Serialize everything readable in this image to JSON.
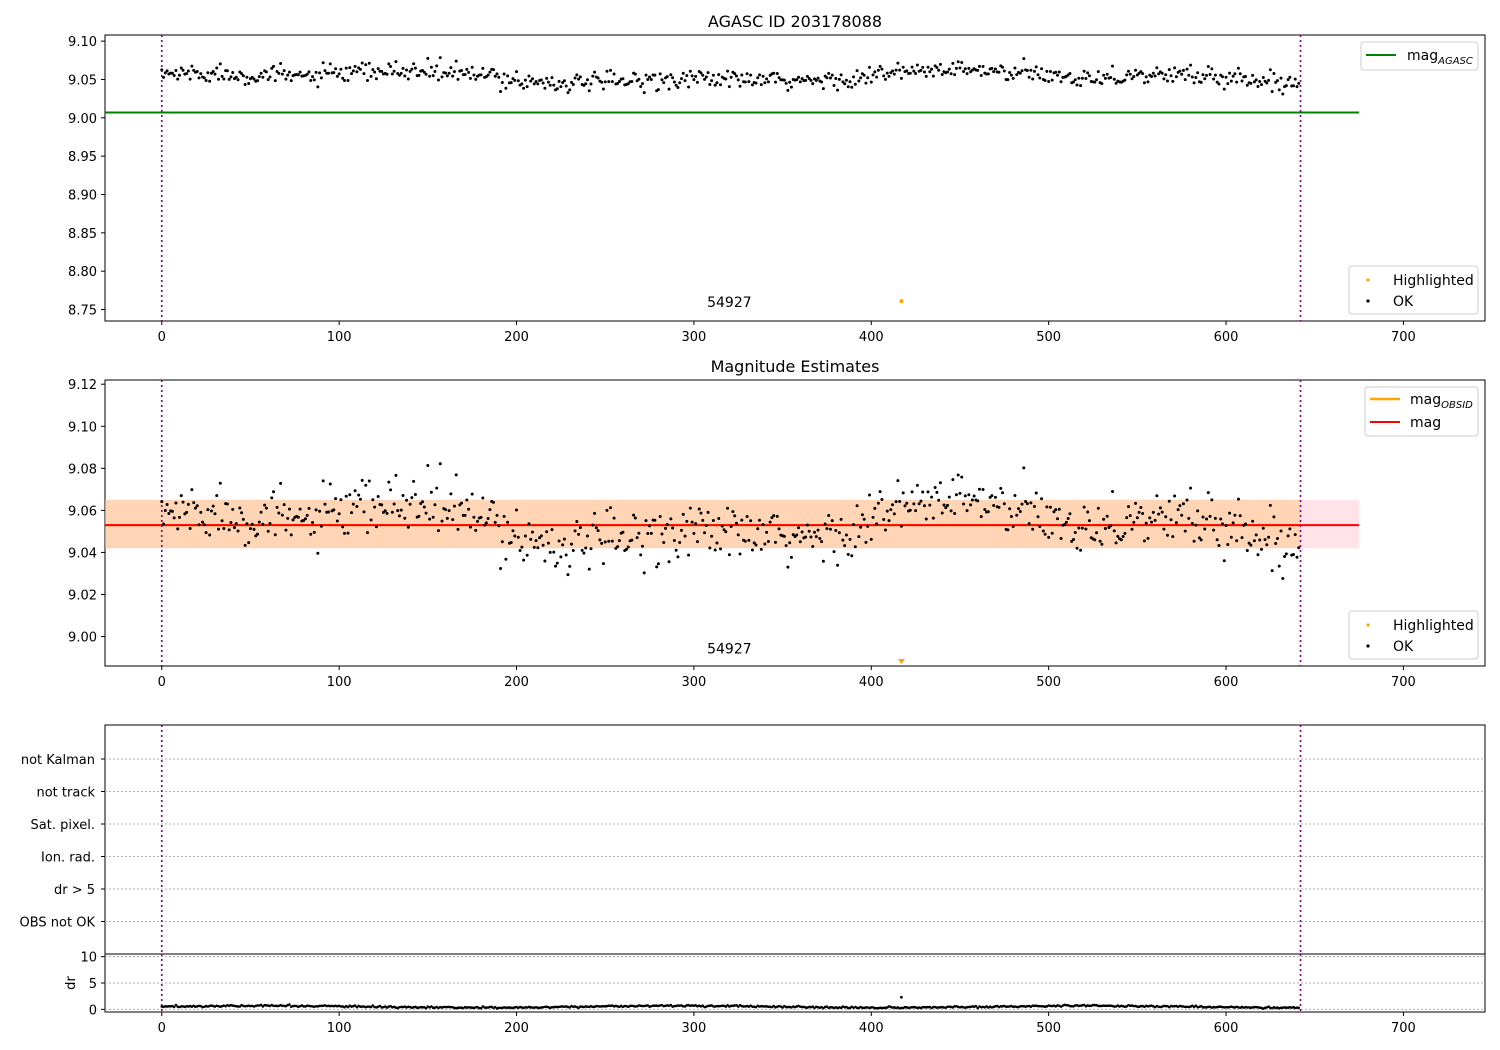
{
  "chart_data": [
    {
      "type": "scatter",
      "id": "agasc",
      "title": "AGASC ID 203178088",
      "xlim": [
        -32,
        746
      ],
      "ylim": [
        8.735,
        9.108
      ],
      "xticks": [
        0,
        100,
        200,
        300,
        400,
        500,
        600,
        700
      ],
      "yticks": [
        8.75,
        8.8,
        8.85,
        8.9,
        8.95,
        9.0,
        9.05,
        9.1
      ],
      "ytick_labels": [
        "8.75",
        "8.80",
        "8.85",
        "8.90",
        "8.95",
        "9.00",
        "9.05",
        "9.10"
      ],
      "vlines": [
        0,
        642
      ],
      "vline_color": "#800080",
      "hline": {
        "y": 9.007,
        "x0": -32,
        "x1": 675,
        "color": "#008000",
        "label_main": "mag",
        "label_sub": "AGASC"
      },
      "ok_series": {
        "name": "OK",
        "color": "#000000",
        "n": 642,
        "x0": 0,
        "x1": 641,
        "mean": 9.053,
        "spread": 0.011,
        "min": 9.023,
        "max": 9.083
      },
      "highlighted": [
        {
          "x": 417,
          "y": 8.761,
          "label": "Highlighted",
          "color": "#FFA500"
        }
      ],
      "annotation": {
        "text": "54927",
        "x": 320,
        "y": 8.753
      },
      "legends": {
        "top_right": [
          "mag_AGASC"
        ],
        "bottom_right": [
          "Highlighted",
          "OK"
        ]
      }
    },
    {
      "type": "scatter",
      "id": "mag_estimates",
      "title": "Magnitude Estimates",
      "xlim": [
        -32,
        746
      ],
      "ylim": [
        8.986,
        9.122
      ],
      "xticks": [
        0,
        100,
        200,
        300,
        400,
        500,
        600,
        700
      ],
      "yticks": [
        9.0,
        9.02,
        9.04,
        9.06,
        9.08,
        9.1,
        9.12
      ],
      "ytick_labels": [
        "9.00",
        "9.02",
        "9.04",
        "9.06",
        "9.08",
        "9.10",
        "9.12"
      ],
      "vlines": [
        0,
        642
      ],
      "band": {
        "y0": 9.042,
        "y1": 9.065,
        "x0": -32,
        "x1": 675,
        "color": "#FFC0CB"
      },
      "band_inner": {
        "y0": 9.042,
        "y1": 9.065,
        "x0": -32,
        "x1": 642,
        "color": "#FFA500"
      },
      "hline_obsid": {
        "y": 9.053,
        "color": "#FFA500",
        "label_main": "mag",
        "label_sub": "OBSID"
      },
      "hline_mag": {
        "y": 9.053,
        "color": "#FF0000",
        "label": "mag"
      },
      "ok_series": {
        "name": "OK",
        "color": "#000000",
        "n": 642,
        "x0": 0,
        "x1": 641,
        "mean": 9.053,
        "spread": 0.012,
        "min": 9.022,
        "max": 9.083
      },
      "highlighted": [
        {
          "x": 417,
          "y": 8.988,
          "label": "Highlighted",
          "color": "#FFA500",
          "marker": "triangle-down"
        }
      ],
      "annotation": {
        "text": "54927",
        "x": 320,
        "y": 8.992
      },
      "legends": {
        "top_right": [
          "mag_OBSID",
          "mag"
        ],
        "bottom_right": [
          "Highlighted",
          "OK"
        ]
      }
    },
    {
      "type": "table",
      "id": "flags",
      "xlim": [
        -32,
        746
      ],
      "categories": [
        "not Kalman",
        "not track",
        "Sat. pixel.",
        "Ion. rad.",
        "dr > 5",
        "OBS not OK"
      ],
      "vlines": [
        0,
        642
      ],
      "flagged_points": []
    },
    {
      "type": "scatter",
      "id": "dr",
      "ylabel": "dr",
      "xlim": [
        -32,
        746
      ],
      "ylim": [
        -0.5,
        10.5
      ],
      "xticks": [
        0,
        100,
        200,
        300,
        400,
        500,
        600,
        700
      ],
      "yticks": [
        0,
        5,
        10
      ],
      "ytick_labels": [
        "0",
        "5",
        "10"
      ],
      "vlines": [
        0,
        642
      ],
      "ok_series": {
        "name": "dr",
        "color": "#000000",
        "n": 642,
        "x0": 0,
        "x1": 641,
        "mean": 0.5,
        "spread": 0.25
      },
      "highlighted": [
        {
          "x": 417,
          "y": 2.3
        }
      ]
    }
  ],
  "legend_labels": {
    "mag": "mag",
    "sub_agasc": "AGASC",
    "sub_obsid": "OBSID",
    "highlighted": "Highlighted",
    "ok": "OK"
  },
  "colors": {
    "ok": "#000000",
    "highlighted": "#FFA500",
    "agasc_line": "#008000",
    "mag_line": "#FF0000",
    "obsid_line": "#FFA500",
    "vline": "#800080",
    "band_outer": "#FFC0CB",
    "band_inner": "#FFA500"
  }
}
